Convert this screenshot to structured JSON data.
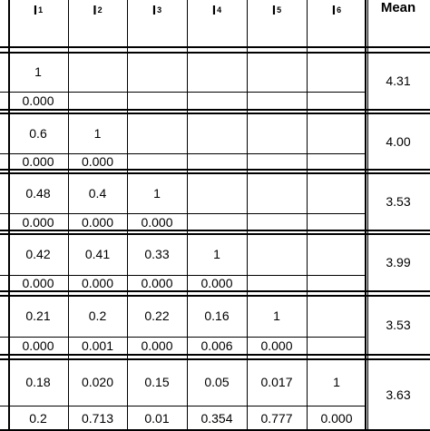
{
  "table": {
    "header": {
      "items": [
        {
          "base": "I",
          "sub": "1"
        },
        {
          "base": "I",
          "sub": "2"
        },
        {
          "base": "I",
          "sub": "3"
        },
        {
          "base": "I",
          "sub": "4"
        },
        {
          "base": "I",
          "sub": "5"
        },
        {
          "base": "I",
          "sub": "6"
        }
      ],
      "mean_label": "Mean"
    },
    "rows": [
      {
        "corr": [
          "1",
          "",
          "",
          "",
          "",
          ""
        ],
        "sig": [
          "0.000",
          "",
          "",
          "",
          "",
          ""
        ],
        "mean": "4.31"
      },
      {
        "corr": [
          "0.6",
          "1",
          "",
          "",
          "",
          ""
        ],
        "sig": [
          "0.000",
          "0.000",
          "",
          "",
          "",
          ""
        ],
        "mean": "4.00"
      },
      {
        "corr": [
          "0.48",
          "0.4",
          "1",
          "",
          "",
          ""
        ],
        "sig": [
          "0.000",
          "0.000",
          "0.000",
          "",
          "",
          ""
        ],
        "mean": "3.53"
      },
      {
        "corr": [
          "0.42",
          "0.41",
          "0.33",
          "1",
          "",
          ""
        ],
        "sig": [
          "0.000",
          "0.000",
          "0.000",
          "0.000",
          "",
          ""
        ],
        "mean": "3.99"
      },
      {
        "corr": [
          "0.21",
          "0.2",
          "0.22",
          "0.16",
          "1",
          ""
        ],
        "sig": [
          "0.000",
          "0.001",
          "0.000",
          "0.006",
          "0.000",
          ""
        ],
        "mean": "3.53"
      },
      {
        "corr": [
          "0.18",
          "0.020",
          "0.15",
          "0.05",
          "0.017",
          "1"
        ],
        "sig": [
          "0.2",
          "0.713",
          "0.01",
          "0.354",
          "0.777",
          "0.000"
        ],
        "mean": "3.63"
      }
    ]
  }
}
